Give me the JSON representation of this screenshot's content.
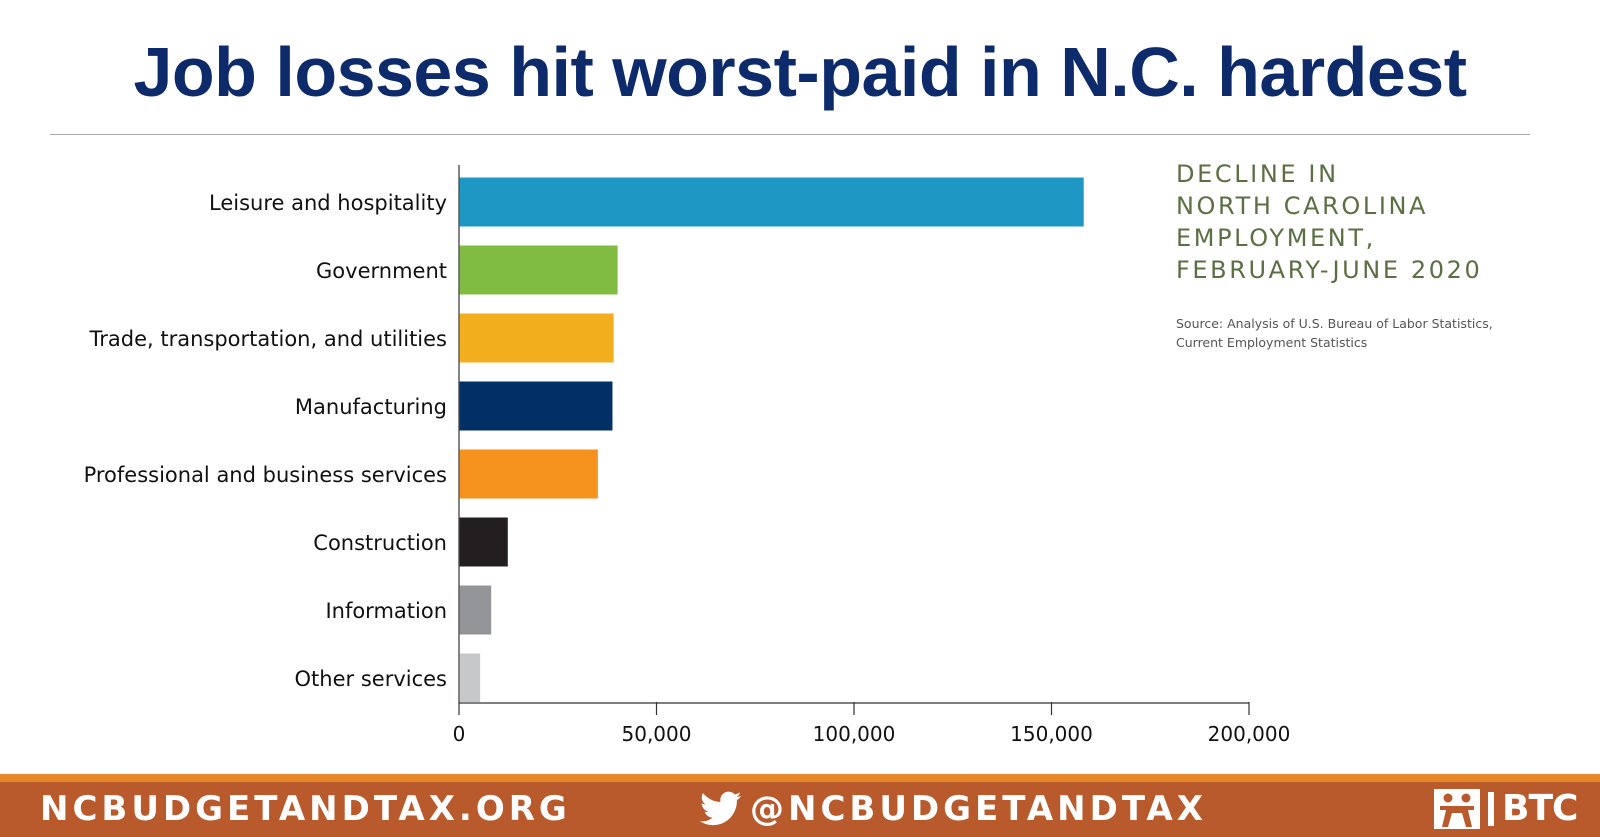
{
  "title": "Job losses hit worst-paid in N.C. hardest",
  "side_title": [
    "DECLINE IN",
    "NORTH CAROLINA",
    "EMPLOYMENT,",
    "FEBRUARY-JUNE 2020"
  ],
  "source": [
    "Source: Analysis of U.S. Bureau of Labor Statistics,",
    "Current Employment Statistics"
  ],
  "footer": {
    "website": "NCBUDGETANDTAX.ORG",
    "twitter_handle": "@NCBUDGETANDTAX",
    "logo_text": "BTC",
    "icons": [
      "twitter-bird-icon",
      "btc-logo-icon"
    ],
    "background_color": "#b85a2c",
    "stripe_color": "#e8872a"
  },
  "chart_data": {
    "type": "bar",
    "orientation": "horizontal",
    "categories": [
      "Leisure and hospitality",
      "Government",
      "Trade, transportation, and utilities",
      "Manufacturing",
      "Professional and business services",
      "Construction",
      "Information",
      "Other services"
    ],
    "values": [
      158000,
      40000,
      39000,
      38700,
      35000,
      12200,
      8000,
      5200
    ],
    "colors": [
      "#1f97c4",
      "#80bc41",
      "#f2ae1d",
      "#022f66",
      "#f6921e",
      "#231f20",
      "#939598",
      "#c7c8ca"
    ],
    "xlim": [
      0,
      200000
    ],
    "xticks": [
      0,
      50000,
      100000,
      150000,
      200000
    ],
    "xtick_labels": [
      "0",
      "50,000",
      "100,000",
      "150,000",
      "200,000"
    ],
    "grid": false,
    "legend": "none"
  }
}
